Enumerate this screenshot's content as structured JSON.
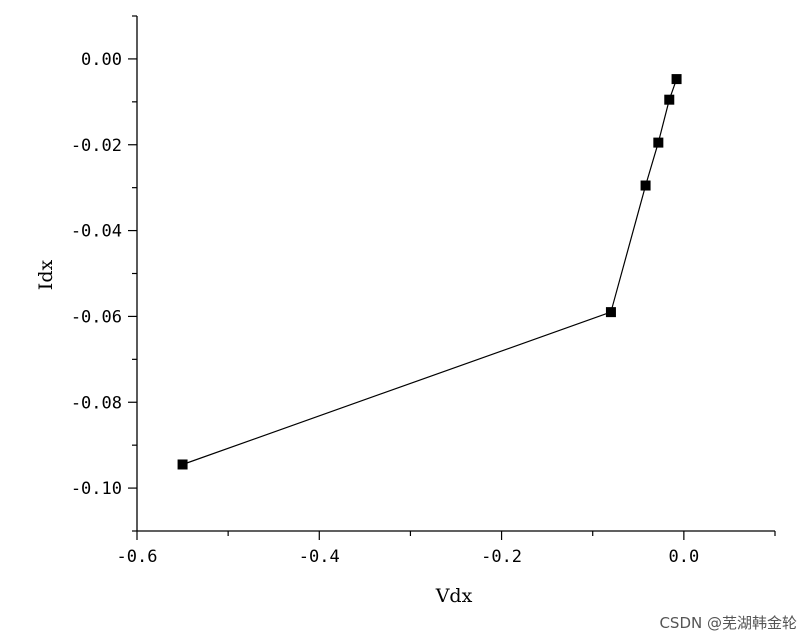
{
  "chart_data": {
    "type": "line",
    "xlabel": "Vdx",
    "ylabel": "Idx",
    "xlim": [
      -0.6,
      0.1
    ],
    "ylim": [
      -0.11,
      0.01
    ],
    "x_ticks": [
      -0.6,
      -0.4,
      -0.2,
      0.0
    ],
    "x_tick_labels": [
      "-0.6",
      "-0.4",
      "-0.2",
      "0.0"
    ],
    "y_ticks": [
      0.0,
      -0.02,
      -0.04,
      -0.06,
      -0.08,
      -0.1
    ],
    "y_tick_labels": [
      "0.00",
      "-0.02",
      "-0.04",
      "-0.06",
      "-0.08",
      "-0.10"
    ],
    "grid": false,
    "marker": "square",
    "series": [
      {
        "x": [
          -0.55,
          -0.08,
          -0.042,
          -0.028,
          -0.016,
          -0.008
        ],
        "y": [
          -0.0945,
          -0.059,
          -0.0295,
          -0.0195,
          -0.0095,
          -0.0047
        ],
        "color": "#000000"
      }
    ]
  },
  "watermark": "CSDN @芜湖韩金轮"
}
